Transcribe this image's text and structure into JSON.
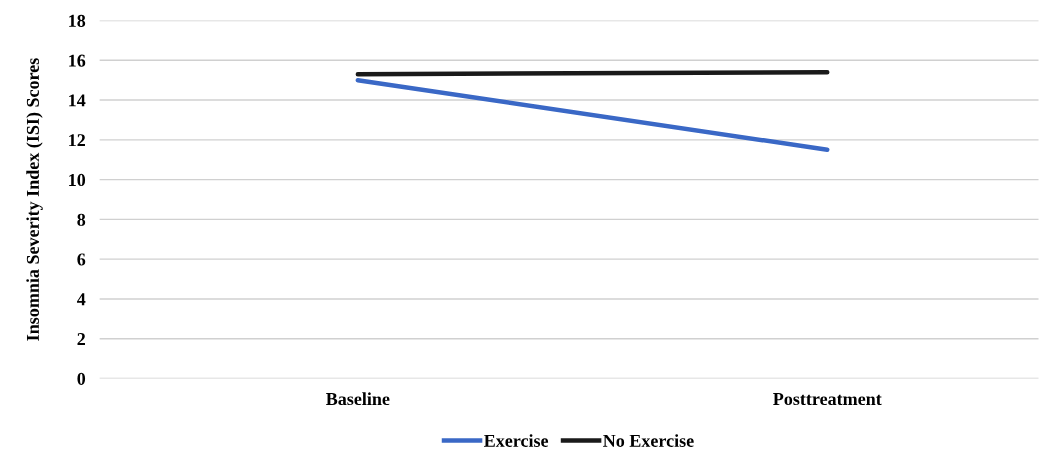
{
  "chart_data": {
    "type": "line",
    "ylabel": "Insomnia Severity Index (ISI) Scores",
    "categories": [
      "Baseline",
      "Posttreatment"
    ],
    "series": [
      {
        "name": "Exercise",
        "color": "#3a68c6",
        "values": [
          15.0,
          11.5
        ]
      },
      {
        "name": "No Exercise",
        "color": "#1a1a1a",
        "values": [
          15.3,
          15.4
        ]
      }
    ],
    "ylim": [
      0,
      18
    ],
    "yticks": [
      0,
      2,
      4,
      6,
      8,
      10,
      12,
      14,
      16,
      18
    ],
    "grid": "y",
    "legend": "bottom",
    "marker": "none",
    "line_style": "solid"
  }
}
